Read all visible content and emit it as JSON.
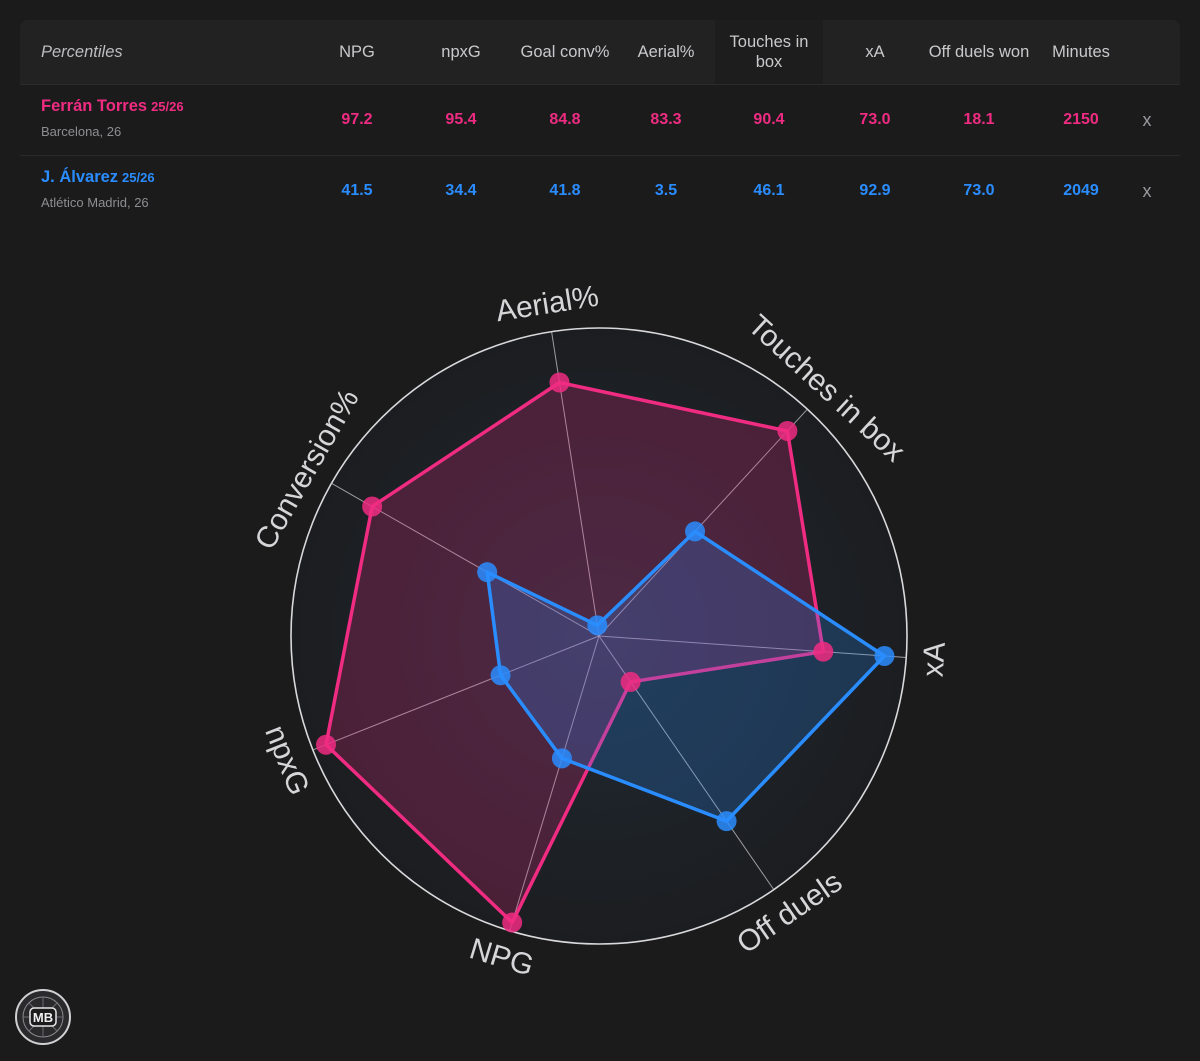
{
  "table": {
    "header_label": "Percentiles",
    "columns": [
      "NPG",
      "npxG",
      "Goal conv%",
      "Aerial%",
      "Touches in box",
      "xA",
      "Off duels won",
      "Minutes"
    ],
    "players": [
      {
        "name": "Ferrán Torres",
        "season": "25/26",
        "club": "Barcelona, 26",
        "color": "#f02b82",
        "values": [
          "97.2",
          "95.4",
          "84.8",
          "83.3",
          "90.4",
          "73.0",
          "18.1",
          "2150"
        ],
        "remove_label": "x"
      },
      {
        "name": "J. Álvarez",
        "season": "25/26",
        "club": "Atlético Madrid, 26",
        "color": "#2a8dff",
        "values": [
          "41.5",
          "34.4",
          "41.8",
          "3.5",
          "46.1",
          "92.9",
          "73.0",
          "2049"
        ],
        "remove_label": "x"
      }
    ]
  },
  "chart_data": {
    "type": "radar",
    "axes": [
      "xA",
      "Off duels",
      "NPG",
      "npxG",
      "Conversion%",
      "Aerial%",
      "Touches in box"
    ],
    "range": [
      0,
      100
    ],
    "series": [
      {
        "name": "Ferrán Torres",
        "color": "#f02b82",
        "values": [
          73.0,
          18.1,
          97.2,
          95.4,
          84.8,
          83.3,
          90.4
        ]
      },
      {
        "name": "J. Álvarez",
        "color": "#2a8dff",
        "values": [
          92.9,
          73.0,
          41.5,
          34.4,
          41.8,
          3.5,
          46.1
        ]
      }
    ]
  },
  "logo": {
    "text": "MB"
  }
}
